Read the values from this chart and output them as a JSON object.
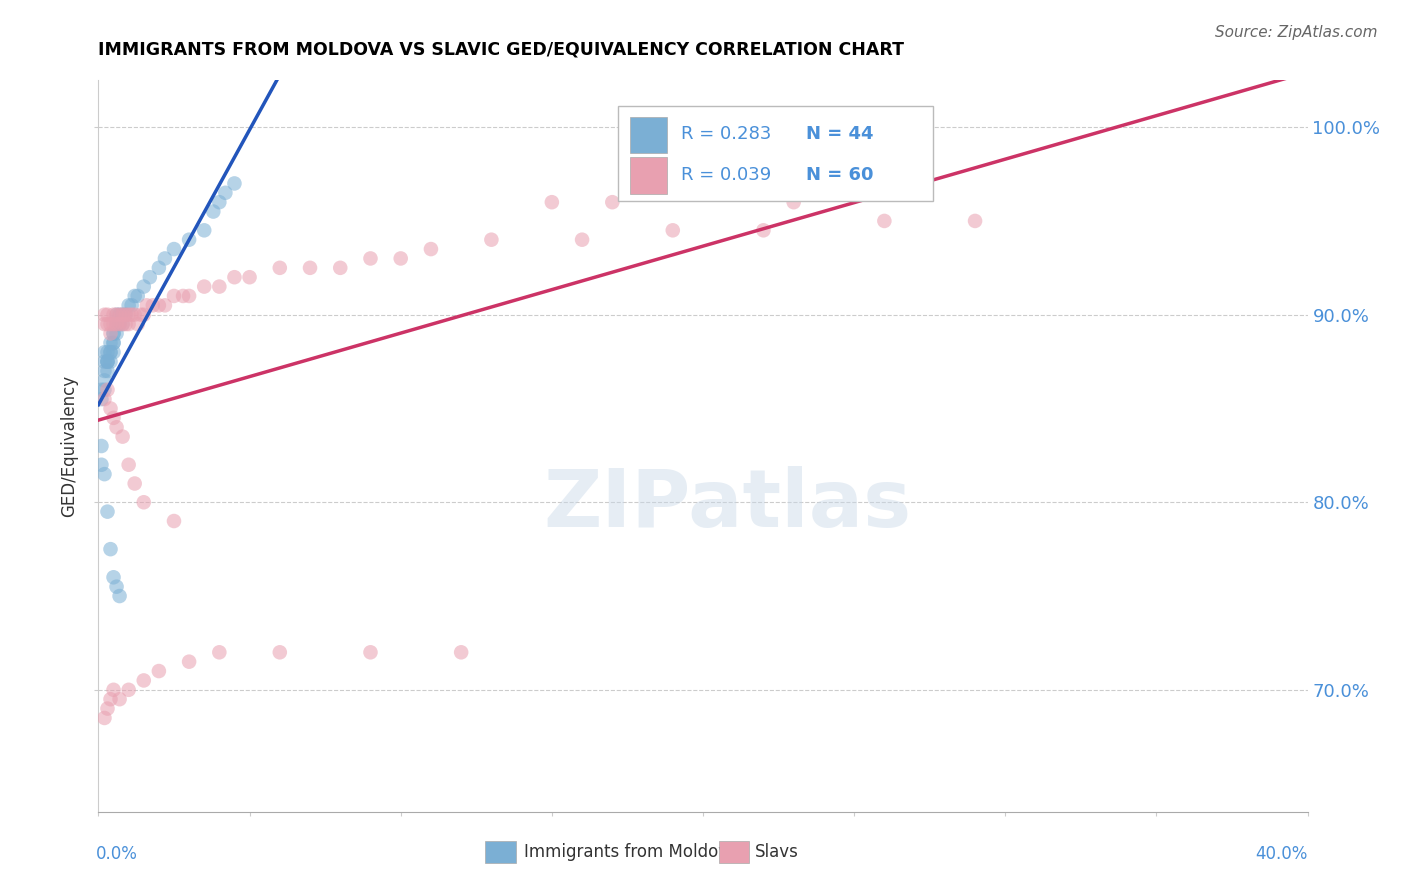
{
  "title": "IMMIGRANTS FROM MOLDOVA VS SLAVIC GED/EQUIVALENCY CORRELATION CHART",
  "source": "Source: ZipAtlas.com",
  "ylabel": "GED/Equivalency",
  "ylabel_ticks": [
    "100.0%",
    "90.0%",
    "80.0%",
    "70.0%"
  ],
  "ylabel_tick_values": [
    1.0,
    0.9,
    0.8,
    0.7
  ],
  "watermark": "ZIPatlas",
  "blue_color": "#7bafd4",
  "pink_color": "#e8a0b0",
  "blue_fill": "#a8c8e8",
  "pink_fill": "#f0b8c8",
  "blue_line_color": "#2255bb",
  "pink_line_color": "#cc3366",
  "xlim": [
    0.0,
    0.4
  ],
  "ylim": [
    0.635,
    1.025
  ],
  "moldova_x": [
    0.001,
    0.001,
    0.002,
    0.002,
    0.002,
    0.002,
    0.002,
    0.003,
    0.003,
    0.003,
    0.003,
    0.003,
    0.004,
    0.004,
    0.004,
    0.004,
    0.005,
    0.005,
    0.005,
    0.005,
    0.005,
    0.006,
    0.006,
    0.006,
    0.007,
    0.007,
    0.008,
    0.008,
    0.009,
    0.01,
    0.011,
    0.012,
    0.013,
    0.015,
    0.017,
    0.02,
    0.022,
    0.025,
    0.03,
    0.035,
    0.038,
    0.04,
    0.042,
    0.045
  ],
  "moldova_y": [
    0.855,
    0.86,
    0.865,
    0.86,
    0.87,
    0.875,
    0.88,
    0.875,
    0.87,
    0.875,
    0.88,
    0.875,
    0.88,
    0.875,
    0.885,
    0.88,
    0.88,
    0.885,
    0.89,
    0.885,
    0.89,
    0.89,
    0.895,
    0.9,
    0.9,
    0.895,
    0.895,
    0.9,
    0.9,
    0.905,
    0.905,
    0.91,
    0.91,
    0.915,
    0.92,
    0.925,
    0.93,
    0.935,
    0.94,
    0.945,
    0.955,
    0.96,
    0.965,
    0.97
  ],
  "moldova_x2": [
    0.001,
    0.001,
    0.002,
    0.003,
    0.004,
    0.005,
    0.006,
    0.007
  ],
  "moldova_y2": [
    0.83,
    0.82,
    0.815,
    0.795,
    0.775,
    0.76,
    0.755,
    0.75
  ],
  "slavs_x": [
    0.002,
    0.002,
    0.003,
    0.003,
    0.004,
    0.004,
    0.005,
    0.005,
    0.006,
    0.006,
    0.007,
    0.007,
    0.008,
    0.008,
    0.009,
    0.009,
    0.01,
    0.01,
    0.011,
    0.012,
    0.013,
    0.014,
    0.015,
    0.016,
    0.018,
    0.02,
    0.022,
    0.025,
    0.028,
    0.03,
    0.035,
    0.04,
    0.045,
    0.05,
    0.06,
    0.07,
    0.08,
    0.09,
    0.1,
    0.11,
    0.13,
    0.16,
    0.19,
    0.22,
    0.26,
    0.29,
    0.15,
    0.17,
    0.2,
    0.23
  ],
  "slavs_y": [
    0.9,
    0.895,
    0.895,
    0.9,
    0.89,
    0.895,
    0.9,
    0.895,
    0.895,
    0.9,
    0.895,
    0.9,
    0.9,
    0.895,
    0.895,
    0.9,
    0.895,
    0.9,
    0.9,
    0.9,
    0.895,
    0.9,
    0.9,
    0.905,
    0.905,
    0.905,
    0.905,
    0.91,
    0.91,
    0.91,
    0.915,
    0.915,
    0.92,
    0.92,
    0.925,
    0.925,
    0.925,
    0.93,
    0.93,
    0.935,
    0.94,
    0.94,
    0.945,
    0.945,
    0.95,
    0.95,
    0.96,
    0.96,
    0.965,
    0.96
  ],
  "slavs_x2": [
    0.002,
    0.003,
    0.004,
    0.005,
    0.006,
    0.008,
    0.01,
    0.012,
    0.015,
    0.025
  ],
  "slavs_y2": [
    0.855,
    0.86,
    0.85,
    0.845,
    0.84,
    0.835,
    0.82,
    0.81,
    0.8,
    0.79
  ],
  "slavs_x3": [
    0.002,
    0.003,
    0.004,
    0.005,
    0.007,
    0.01,
    0.015,
    0.02,
    0.03,
    0.04,
    0.06,
    0.09,
    0.12
  ],
  "slavs_y3": [
    0.685,
    0.69,
    0.695,
    0.7,
    0.695,
    0.7,
    0.705,
    0.71,
    0.715,
    0.72,
    0.72,
    0.72,
    0.72
  ]
}
